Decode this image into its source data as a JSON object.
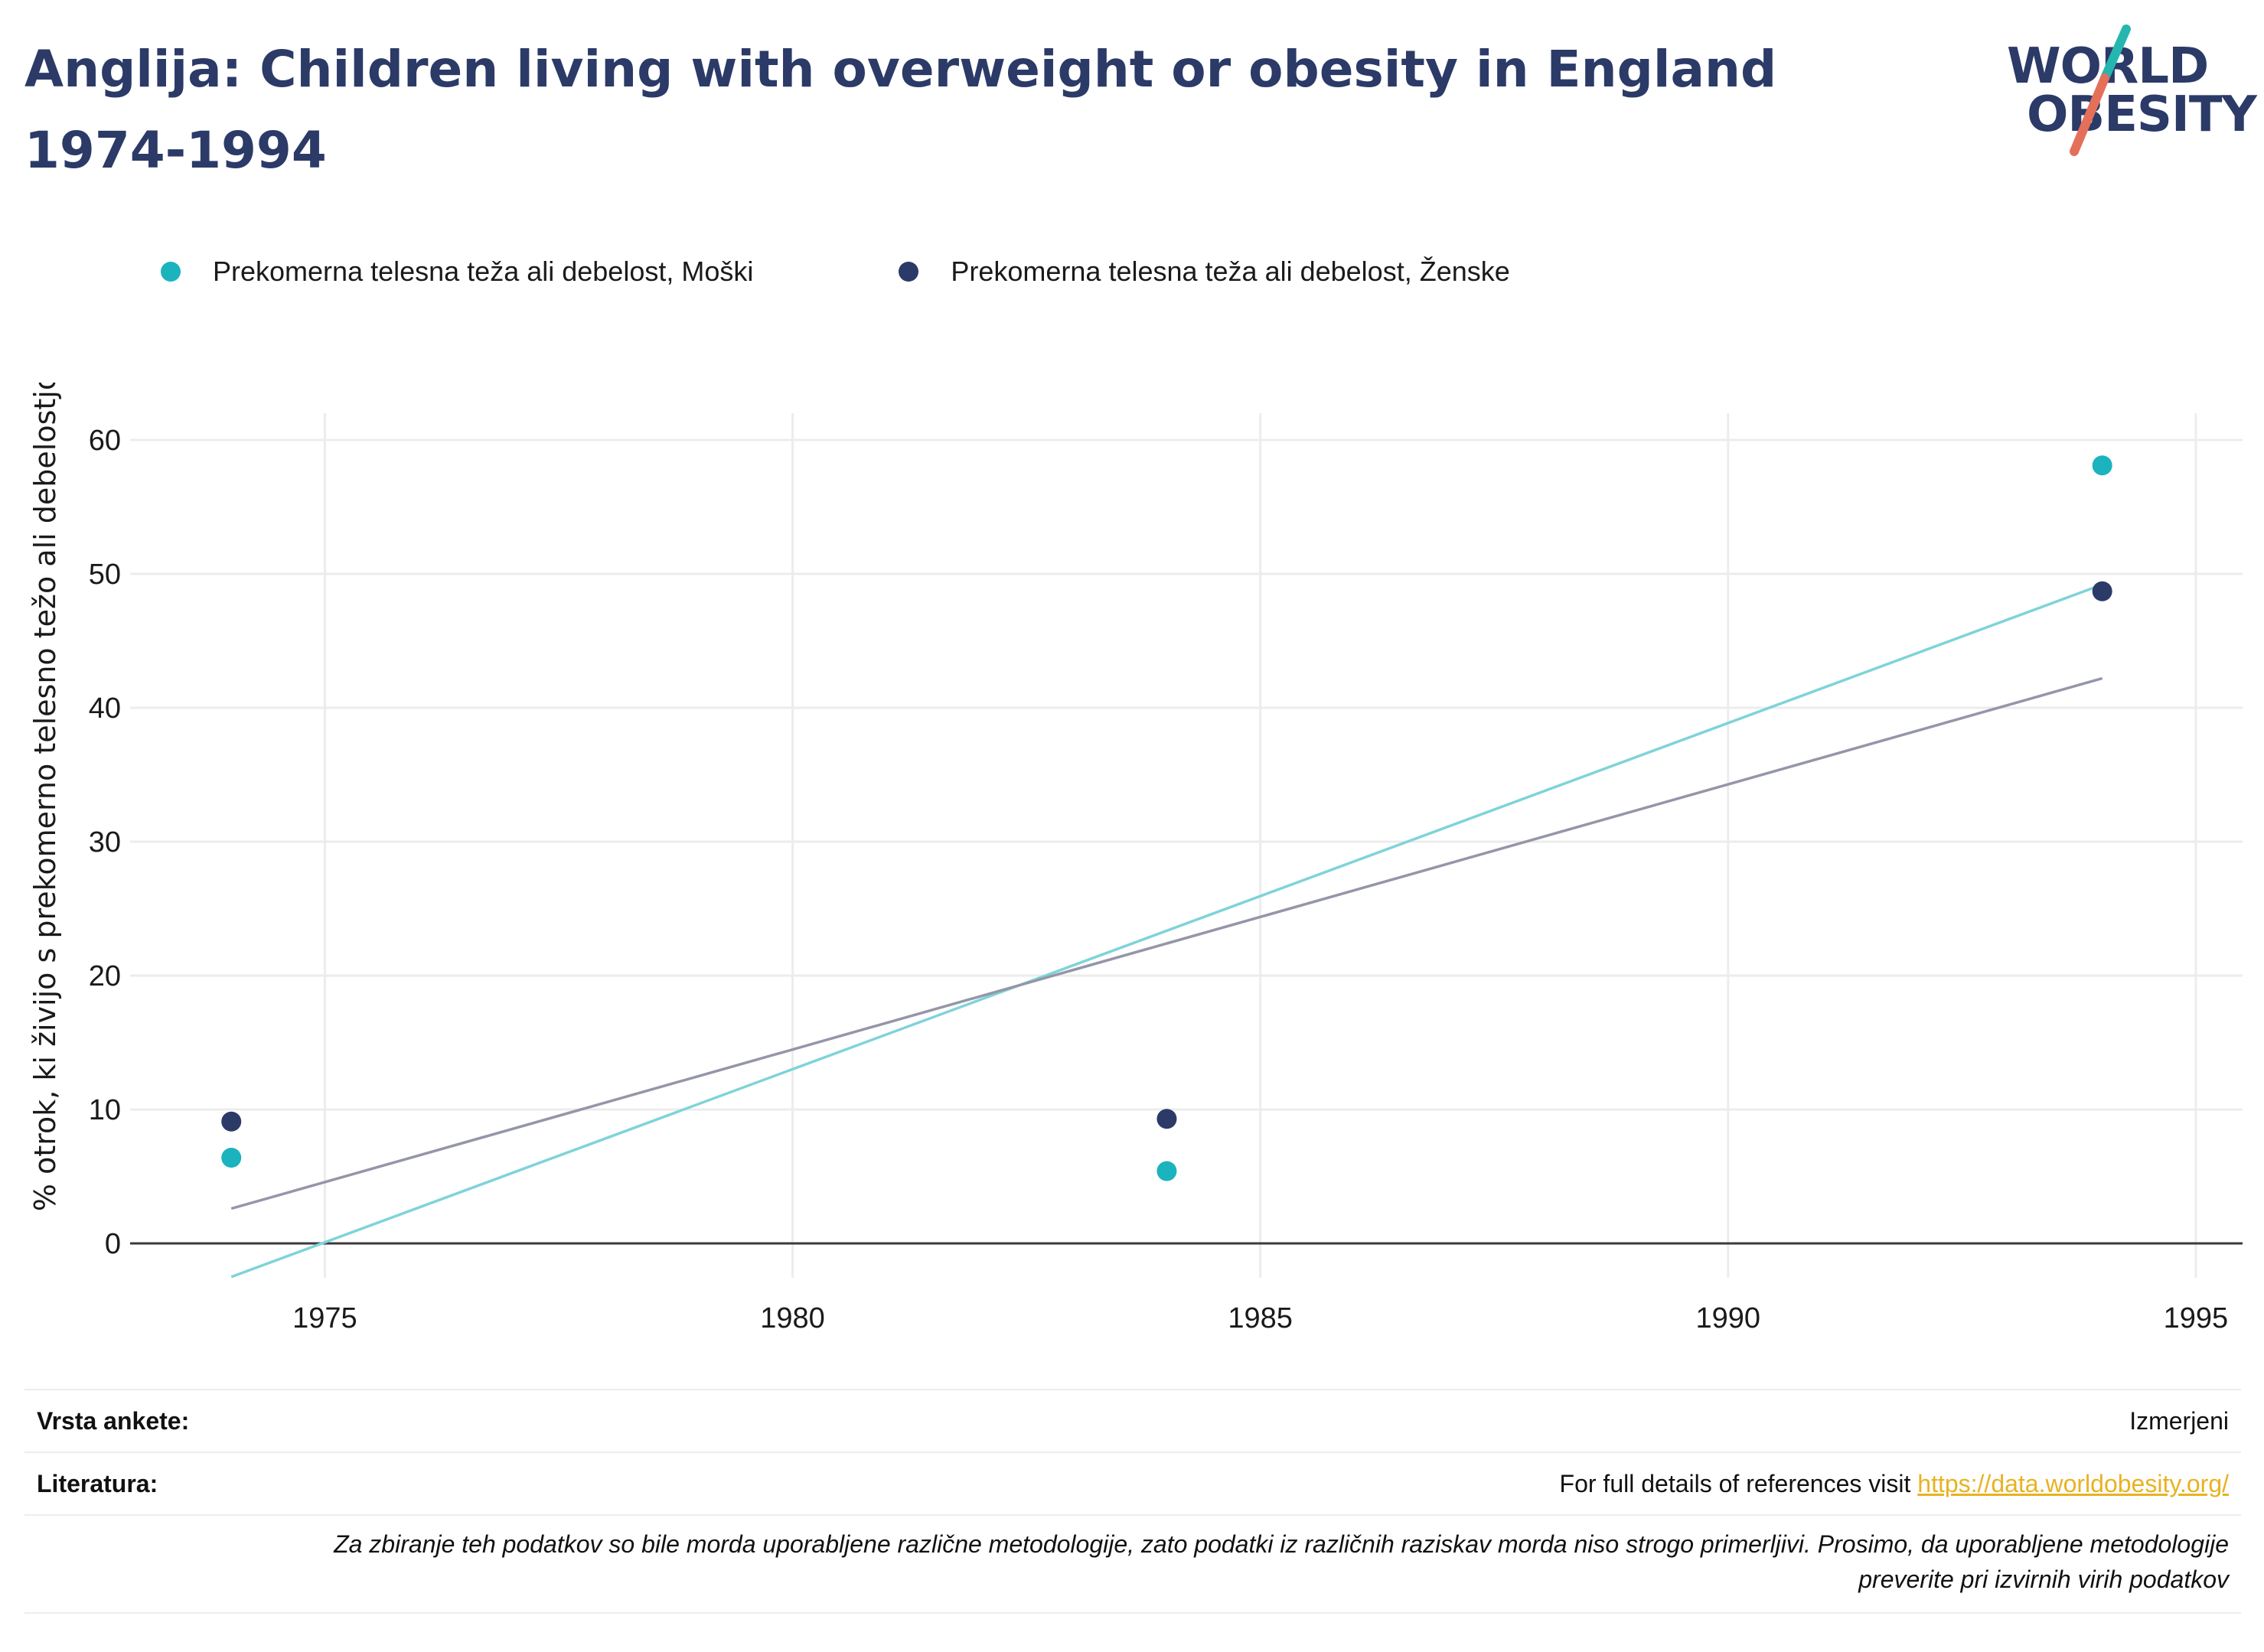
{
  "header": {
    "title": "Anglija: Children living with overweight or obesity in England 1974-1994",
    "logo_line1": "WORLD",
    "logo_line2": "OBESITY"
  },
  "legend": [
    {
      "label": "Prekomerna telesna teža ali debelost, Moški",
      "color": "#1bb3bd"
    },
    {
      "label": "Prekomerna telesna teža ali debelost, Ženske",
      "color": "#2b3a67"
    }
  ],
  "chart_data": {
    "type": "scatter",
    "title": "Anglija: Children living with overweight or obesity in England 1974-1994",
    "xlabel": "",
    "ylabel": "% otrok, ki živijo s prekomerno telesno težo ali debelostjo",
    "xlim": [
      1973,
      1995.5
    ],
    "ylim": [
      -6,
      62
    ],
    "xticks": [
      1975,
      1980,
      1985,
      1990,
      1995
    ],
    "yticks": [
      0,
      10,
      20,
      30,
      40,
      50,
      60
    ],
    "grid": true,
    "legend_position": "top",
    "series": [
      {
        "name": "Prekomerna telesna teža ali debelost, Moški",
        "color": "#1bb3bd",
        "trend_color": "#7fd3d9",
        "x": [
          1974,
          1984,
          1994
        ],
        "y": [
          6.4,
          5.4,
          58.1
        ],
        "trend": {
          "x": [
            1974,
            1994
          ],
          "y": [
            -2.5,
            49.2
          ]
        }
      },
      {
        "name": "Prekomerna telesna teža ali debelost, Ženske",
        "color": "#2b3a67",
        "trend_color": "#9496a8",
        "x": [
          1974,
          1984,
          1994
        ],
        "y": [
          9.1,
          9.3,
          48.7
        ],
        "trend": {
          "x": [
            1974,
            1994
          ],
          "y": [
            2.6,
            42.2
          ]
        }
      }
    ]
  },
  "footer": {
    "survey_key": "Vrsta ankete:",
    "survey_val": "Izmerjeni",
    "lit_key": "Literatura:",
    "lit_text": "For full details of references visit ",
    "lit_link": "https://data.worldobesity.org/",
    "disclaimer_line1": "Za zbiranje teh podatkov so bile morda uporabljene različne metodologije, zato podatki iz različnih raziskav morda niso strogo primerljivi. Prosimo, da uporabljene metodologije",
    "disclaimer_line2": "preverite pri izvirnih virih podatkov"
  }
}
